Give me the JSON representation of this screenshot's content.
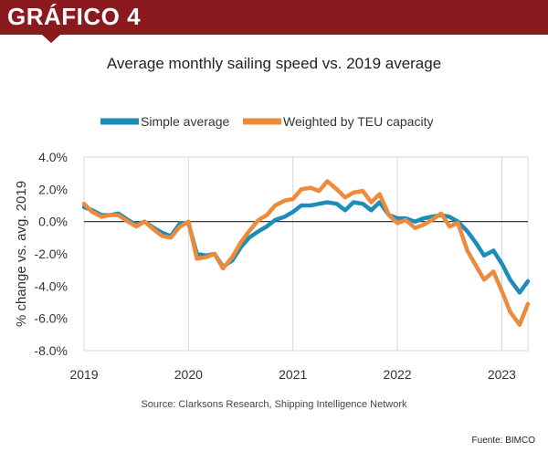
{
  "header": {
    "title": "GRÁFICO 4"
  },
  "footer": {
    "source": "Source: Clarksons Research, Shipping Intelligence Network",
    "credit": "Fuente: BIMCO"
  },
  "chart_data": {
    "type": "line",
    "title": "Average monthly sailing speed vs. 2019 average",
    "xlabel": "",
    "ylabel": "% change vs. avg. 2019",
    "xlim": [
      2019,
      2023.25
    ],
    "ylim": [
      -8,
      4
    ],
    "x_ticks": [
      {
        "value": 2019,
        "label": "2019"
      },
      {
        "value": 2020,
        "label": "2020"
      },
      {
        "value": 2021,
        "label": "2021"
      },
      {
        "value": 2022,
        "label": "2022"
      },
      {
        "value": 2023,
        "label": "2023"
      }
    ],
    "y_ticks": [
      {
        "value": 4,
        "label": "4.0%"
      },
      {
        "value": 2,
        "label": "2.0%"
      },
      {
        "value": 0,
        "label": "0.0%"
      },
      {
        "value": -2,
        "label": "-2.0%"
      },
      {
        "value": -4,
        "label": "-4.0%"
      },
      {
        "value": -6,
        "label": "-6.0%"
      },
      {
        "value": -8,
        "label": "-8.0%"
      }
    ],
    "legend_position": "top",
    "zero_line": true,
    "series": [
      {
        "name": "Simple average",
        "color": "#1b8db8",
        "points": [
          [
            2019.0,
            0.9
          ],
          [
            2019.08,
            0.7
          ],
          [
            2019.17,
            0.4
          ],
          [
            2019.25,
            0.4
          ],
          [
            2019.33,
            0.5
          ],
          [
            2019.42,
            0.1
          ],
          [
            2019.5,
            -0.2
          ],
          [
            2019.58,
            0.0
          ],
          [
            2019.67,
            -0.4
          ],
          [
            2019.75,
            -0.7
          ],
          [
            2019.83,
            -0.9
          ],
          [
            2019.92,
            -0.1
          ],
          [
            2020.0,
            -0.1
          ],
          [
            2020.08,
            -2.0
          ],
          [
            2020.17,
            -2.1
          ],
          [
            2020.25,
            -2.0
          ],
          [
            2020.33,
            -2.8
          ],
          [
            2020.42,
            -2.4
          ],
          [
            2020.5,
            -1.6
          ],
          [
            2020.58,
            -1.0
          ],
          [
            2020.67,
            -0.6
          ],
          [
            2020.75,
            -0.3
          ],
          [
            2020.83,
            0.1
          ],
          [
            2020.92,
            0.3
          ],
          [
            2021.0,
            0.6
          ],
          [
            2021.08,
            1.0
          ],
          [
            2021.17,
            1.0
          ],
          [
            2021.25,
            1.1
          ],
          [
            2021.33,
            1.2
          ],
          [
            2021.42,
            1.1
          ],
          [
            2021.5,
            0.7
          ],
          [
            2021.58,
            1.2
          ],
          [
            2021.67,
            1.1
          ],
          [
            2021.75,
            0.7
          ],
          [
            2021.83,
            1.2
          ],
          [
            2021.92,
            0.4
          ],
          [
            2022.0,
            0.2
          ],
          [
            2022.08,
            0.2
          ],
          [
            2022.17,
            0.0
          ],
          [
            2022.25,
            0.2
          ],
          [
            2022.33,
            0.3
          ],
          [
            2022.42,
            0.4
          ],
          [
            2022.5,
            0.3
          ],
          [
            2022.58,
            0.0
          ],
          [
            2022.67,
            -0.6
          ],
          [
            2022.75,
            -1.3
          ],
          [
            2022.83,
            -2.1
          ],
          [
            2022.92,
            -1.8
          ],
          [
            2023.0,
            -2.6
          ],
          [
            2023.08,
            -3.6
          ],
          [
            2023.17,
            -4.4
          ],
          [
            2023.25,
            -3.7
          ]
        ]
      },
      {
        "name": "Weighted by TEU capacity",
        "color": "#ee8b3a",
        "points": [
          [
            2019.0,
            1.1
          ],
          [
            2019.08,
            0.6
          ],
          [
            2019.17,
            0.3
          ],
          [
            2019.25,
            0.4
          ],
          [
            2019.33,
            0.4
          ],
          [
            2019.42,
            0.0
          ],
          [
            2019.5,
            -0.3
          ],
          [
            2019.58,
            0.0
          ],
          [
            2019.67,
            -0.5
          ],
          [
            2019.75,
            -0.9
          ],
          [
            2019.83,
            -1.0
          ],
          [
            2019.92,
            -0.3
          ],
          [
            2020.0,
            0.0
          ],
          [
            2020.08,
            -2.3
          ],
          [
            2020.17,
            -2.2
          ],
          [
            2020.25,
            -2.0
          ],
          [
            2020.33,
            -2.9
          ],
          [
            2020.42,
            -2.2
          ],
          [
            2020.5,
            -1.3
          ],
          [
            2020.58,
            -0.6
          ],
          [
            2020.67,
            0.1
          ],
          [
            2020.75,
            0.4
          ],
          [
            2020.83,
            1.0
          ],
          [
            2020.92,
            1.3
          ],
          [
            2021.0,
            1.4
          ],
          [
            2021.08,
            2.0
          ],
          [
            2021.17,
            2.1
          ],
          [
            2021.25,
            1.9
          ],
          [
            2021.33,
            2.5
          ],
          [
            2021.42,
            2.0
          ],
          [
            2021.5,
            1.5
          ],
          [
            2021.58,
            1.8
          ],
          [
            2021.67,
            1.9
          ],
          [
            2021.75,
            1.2
          ],
          [
            2021.83,
            1.7
          ],
          [
            2021.92,
            0.4
          ],
          [
            2022.0,
            -0.1
          ],
          [
            2022.08,
            0.1
          ],
          [
            2022.17,
            -0.4
          ],
          [
            2022.25,
            -0.2
          ],
          [
            2022.33,
            0.1
          ],
          [
            2022.42,
            0.5
          ],
          [
            2022.5,
            -0.3
          ],
          [
            2022.58,
            -0.1
          ],
          [
            2022.67,
            -1.8
          ],
          [
            2022.75,
            -2.7
          ],
          [
            2022.83,
            -3.6
          ],
          [
            2022.92,
            -3.1
          ],
          [
            2023.0,
            -4.3
          ],
          [
            2023.08,
            -5.6
          ],
          [
            2023.17,
            -6.4
          ],
          [
            2023.25,
            -5.1
          ]
        ]
      }
    ]
  }
}
